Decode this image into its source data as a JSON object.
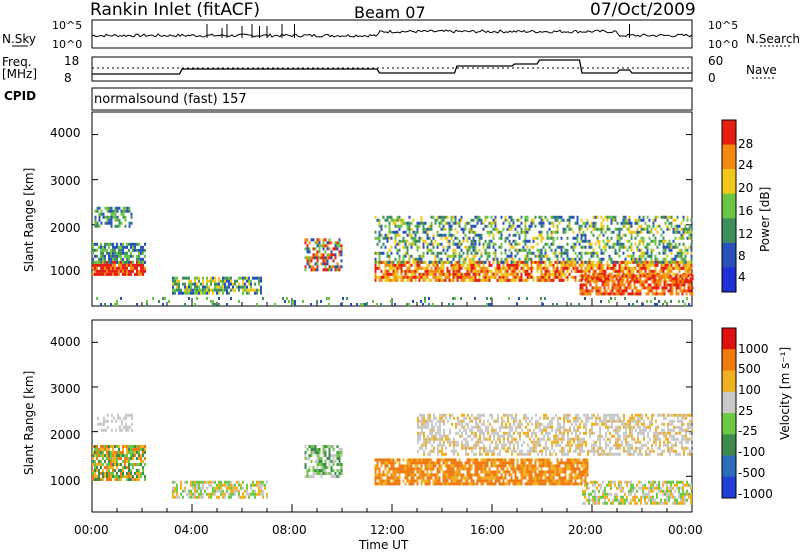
{
  "header": {
    "title": "Rankin Inlet (fitACF)",
    "beam": "Beam 07",
    "date": "07/Oct/2009"
  },
  "summary_panel": {
    "left_labels": {
      "nsky": "N.Sky",
      "freq": "Freq.",
      "freq_unit": "[MHz]",
      "cpid": "CPID"
    },
    "right_labels": {
      "nsearch": "N.Search",
      "nave": "Nave"
    },
    "ticks": {
      "nsky_top": "10^5",
      "nsky_bottom": "10^0",
      "nsearch_top": "10^5",
      "nsearch_bottom": "10^0",
      "freq_top": "18",
      "freq_bottom": "8",
      "nave_top": "60",
      "nave_bottom": "0"
    },
    "cpid_text": "normalsound (fast) 157"
  },
  "chart_data": [
    {
      "type": "heatmap",
      "name": "power-panel",
      "ylabel": "Slant Range [km]",
      "ylim": [
        200,
        4500
      ],
      "yticks": [
        "1000",
        "2000",
        "3000",
        "4000"
      ],
      "xlim": [
        0,
        24
      ],
      "colorbar": {
        "label": "Power [dB]",
        "ticks": [
          "4",
          "8",
          "12",
          "16",
          "20",
          "24",
          "28"
        ],
        "colors": [
          "#1f2fd6",
          "#2750b8",
          "#3f8f5c",
          "#6cc443",
          "#f0c81c",
          "#f58a10",
          "#e62010"
        ]
      }
    },
    {
      "type": "heatmap",
      "name": "velocity-panel",
      "ylabel": "Slant Range [km]",
      "ylim": [
        200,
        4500
      ],
      "yticks": [
        "1000",
        "2000",
        "3000",
        "4000"
      ],
      "xlim": [
        0,
        24
      ],
      "xticks": [
        "00:00",
        "04:00",
        "08:00",
        "12:00",
        "16:00",
        "20:00",
        "00:00"
      ],
      "xlabel": "Time UT",
      "colorbar": {
        "label": "Velocity [m s⁻¹]",
        "ticks": [
          "1000",
          "500",
          "100",
          "25",
          "-25",
          "-100",
          "-500",
          "-1000"
        ],
        "colors": [
          "#1f3fd6",
          "#2a6eb8",
          "#3e8a4a",
          "#6cc843",
          "#c8c8c8",
          "#f0b020",
          "#f07a10",
          "#e01010"
        ]
      }
    }
  ]
}
